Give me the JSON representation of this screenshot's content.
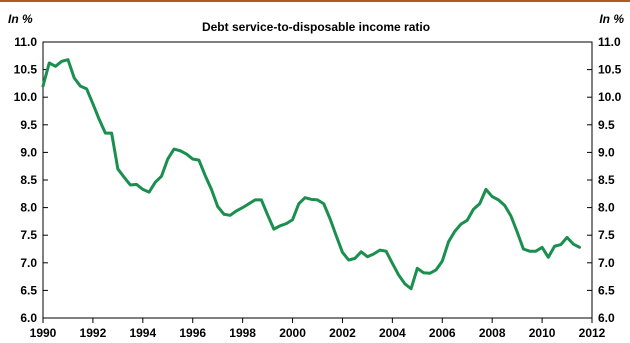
{
  "chart_data": {
    "type": "line",
    "title": "Debt service-to-disposable income ratio",
    "y_unit_left": "In %",
    "y_unit_right": "In %",
    "xlabel": "",
    "ylabel": "",
    "xlim": [
      1990,
      2012
    ],
    "ylim": [
      6.0,
      11.0
    ],
    "x_ticks": [
      1990,
      1992,
      1994,
      1996,
      1998,
      2000,
      2002,
      2004,
      2006,
      2008,
      2010,
      2012
    ],
    "x_tick_labels": [
      "1990",
      "1992",
      "1994",
      "1996",
      "1998",
      "2000",
      "2002",
      "2004",
      "2006",
      "2008",
      "2010",
      "2012"
    ],
    "y_ticks": [
      6.0,
      6.5,
      7.0,
      7.5,
      8.0,
      8.5,
      9.0,
      9.5,
      10.0,
      10.5,
      11.0
    ],
    "y_tick_labels": [
      "6.0",
      "6.5",
      "7.0",
      "7.5",
      "8.0",
      "8.5",
      "9.0",
      "9.5",
      "10.0",
      "10.5",
      "11.0"
    ],
    "grid": false,
    "legend": "none",
    "colors": {
      "series": "#1a8f4e",
      "top_rule": "#b35a1f",
      "axis": "#000000"
    },
    "series": [
      {
        "x": [
          1990.0,
          1990.25,
          1990.5,
          1990.75,
          1991.0,
          1991.25,
          1991.5,
          1991.75,
          1992.0,
          1992.25,
          1992.5,
          1992.75,
          1993.0,
          1993.25,
          1993.5,
          1993.75,
          1994.0,
          1994.25,
          1994.5,
          1994.75,
          1995.0,
          1995.25,
          1995.5,
          1995.75,
          1996.0,
          1996.25,
          1996.5,
          1996.75,
          1997.0,
          1997.25,
          1997.5,
          1997.75,
          1998.0,
          1998.25,
          1998.5,
          1998.75,
          1999.0,
          1999.25,
          1999.5,
          1999.75,
          2000.0,
          2000.25,
          2000.5,
          2000.75,
          2001.0,
          2001.25,
          2001.5,
          2001.75,
          2002.0,
          2002.25,
          2002.5,
          2002.75,
          2003.0,
          2003.25,
          2003.5,
          2003.75,
          2004.0,
          2004.25,
          2004.5,
          2004.75,
          2005.0,
          2005.25,
          2005.5,
          2005.75,
          2006.0,
          2006.25,
          2006.5,
          2006.75,
          2007.0,
          2007.25,
          2007.5,
          2007.75,
          2008.0,
          2008.25,
          2008.5,
          2008.75,
          2009.0,
          2009.25,
          2009.5,
          2009.75,
          2010.0,
          2010.25,
          2010.5,
          2010.75,
          2011.0,
          2011.25,
          2011.5
        ],
        "values": [
          10.2,
          10.62,
          10.56,
          10.65,
          10.68,
          10.35,
          10.2,
          10.15,
          9.88,
          9.6,
          9.35,
          9.35,
          8.7,
          8.55,
          8.41,
          8.42,
          8.33,
          8.28,
          8.46,
          8.57,
          8.88,
          9.06,
          9.03,
          8.97,
          8.88,
          8.86,
          8.58,
          8.33,
          8.02,
          7.88,
          7.86,
          7.94,
          8.0,
          8.07,
          8.14,
          8.14,
          7.87,
          7.61,
          7.67,
          7.71,
          7.78,
          8.07,
          8.18,
          8.15,
          8.14,
          8.07,
          7.8,
          7.49,
          7.19,
          7.05,
          7.08,
          7.2,
          7.11,
          7.16,
          7.23,
          7.21,
          6.99,
          6.78,
          6.62,
          6.53,
          6.9,
          6.82,
          6.81,
          6.87,
          7.03,
          7.38,
          7.57,
          7.7,
          7.77,
          7.97,
          8.07,
          8.33,
          8.2,
          8.14,
          8.04,
          7.85,
          7.56,
          7.25,
          7.21,
          7.21,
          7.28,
          7.1,
          7.3,
          7.33,
          7.46,
          7.34,
          7.28
        ]
      }
    ]
  }
}
